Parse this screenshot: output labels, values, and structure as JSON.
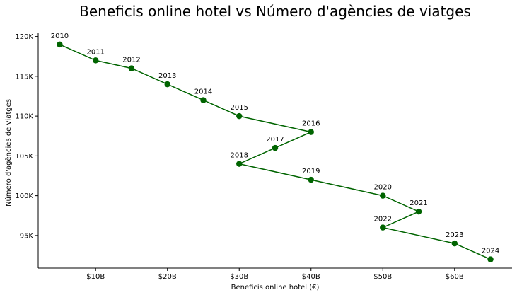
{
  "chart_data": {
    "type": "scatter",
    "title": "Beneficis online hotel vs Número d'agències de viatges",
    "xlabel": "Beneficis online hotel (€)",
    "ylabel": "Número d'agències de viatges",
    "xlim": [
      2,
      68
    ],
    "ylim": [
      90.9,
      120.5
    ],
    "x_ticks": [
      {
        "value": 10,
        "label": "$10B"
      },
      {
        "value": 20,
        "label": "$20B"
      },
      {
        "value": 30,
        "label": "$30B"
      },
      {
        "value": 40,
        "label": "$40B"
      },
      {
        "value": 50,
        "label": "$50B"
      },
      {
        "value": 60,
        "label": "$60B"
      }
    ],
    "y_ticks": [
      {
        "value": 95,
        "label": "95K"
      },
      {
        "value": 100,
        "label": "100K"
      },
      {
        "value": 105,
        "label": "105K"
      },
      {
        "value": 110,
        "label": "110K"
      },
      {
        "value": 115,
        "label": "115K"
      },
      {
        "value": 120,
        "label": "120K"
      }
    ],
    "x_unit": "billions €",
    "y_unit": "thousands",
    "series": [
      {
        "color": "#006400",
        "connected": true,
        "points": [
          {
            "label": "2010",
            "x": 5,
            "y": 119
          },
          {
            "label": "2011",
            "x": 10,
            "y": 117
          },
          {
            "label": "2012",
            "x": 15,
            "y": 116
          },
          {
            "label": "2013",
            "x": 20,
            "y": 114
          },
          {
            "label": "2014",
            "x": 25,
            "y": 112
          },
          {
            "label": "2015",
            "x": 30,
            "y": 110
          },
          {
            "label": "2016",
            "x": 40,
            "y": 108
          },
          {
            "label": "2017",
            "x": 35,
            "y": 106
          },
          {
            "label": "2018",
            "x": 30,
            "y": 104
          },
          {
            "label": "2019",
            "x": 40,
            "y": 102
          },
          {
            "label": "2020",
            "x": 50,
            "y": 100
          },
          {
            "label": "2021",
            "x": 55,
            "y": 98
          },
          {
            "label": "2022",
            "x": 50,
            "y": 96
          },
          {
            "label": "2023",
            "x": 60,
            "y": 94
          },
          {
            "label": "2024",
            "x": 65,
            "y": 92
          }
        ]
      }
    ],
    "grid": false,
    "legend": "none"
  }
}
